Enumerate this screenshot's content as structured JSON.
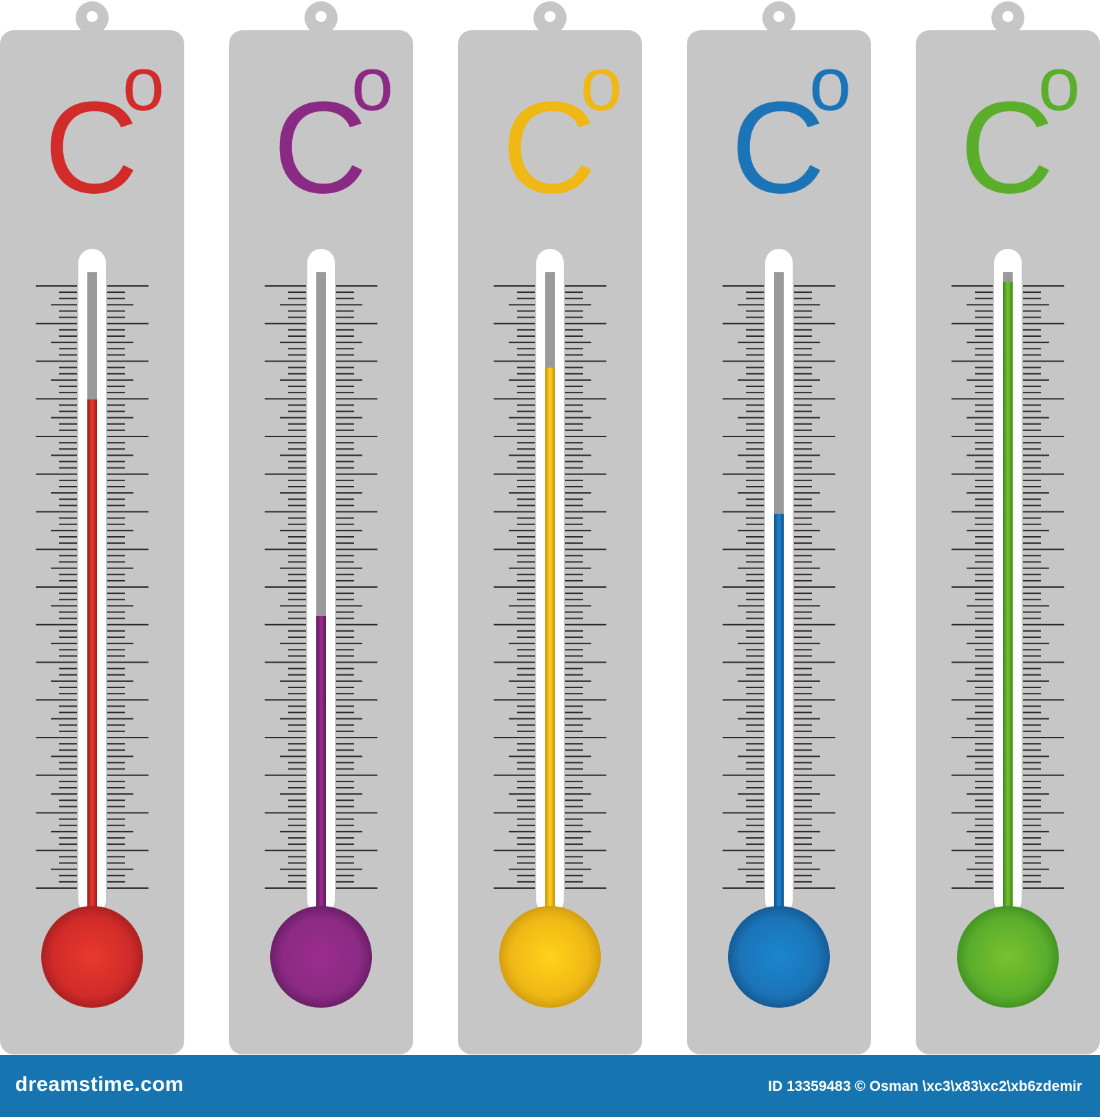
{
  "colors": {
    "panel": "#c6c6c6",
    "tube": "#ffffff",
    "tube_empty": "#9a9a9a",
    "tick": "#2a2a2a",
    "footer_bg": "#1675b0",
    "footer_text": "#ffffff"
  },
  "thermometers": [
    {
      "id": "red",
      "unit_label": "C",
      "unit_superscript": "o",
      "color": "#d12b2a",
      "color_dark": "#9b1c1e",
      "color_light": "#e8392c",
      "fill_level": 0.8
    },
    {
      "id": "purple",
      "unit_label": "C",
      "unit_superscript": "o",
      "color": "#8b2a84",
      "color_dark": "#5f1a5d",
      "color_light": "#9c2c8e",
      "fill_level": 0.46
    },
    {
      "id": "yellow",
      "unit_label": "C",
      "unit_superscript": "o",
      "color": "#f0b815",
      "color_dark": "#c7940f",
      "color_light": "#ffd21a",
      "fill_level": 0.85
    },
    {
      "id": "blue",
      "unit_label": "C",
      "unit_superscript": "o",
      "color": "#1b74b7",
      "color_dark": "#12508b",
      "color_light": "#1b86cf",
      "fill_level": 0.62
    },
    {
      "id": "green",
      "unit_label": "C",
      "unit_superscript": "o",
      "color": "#5aae2c",
      "color_dark": "#3a8a1d",
      "color_light": "#7ac02e",
      "fill_level": 0.985
    }
  ],
  "watermark": {
    "brand_text": "dreamstime.com",
    "credit_text": "ID 13359483 © Osman \\xc3\\x83\\xc2\\xb6zdemir"
  }
}
